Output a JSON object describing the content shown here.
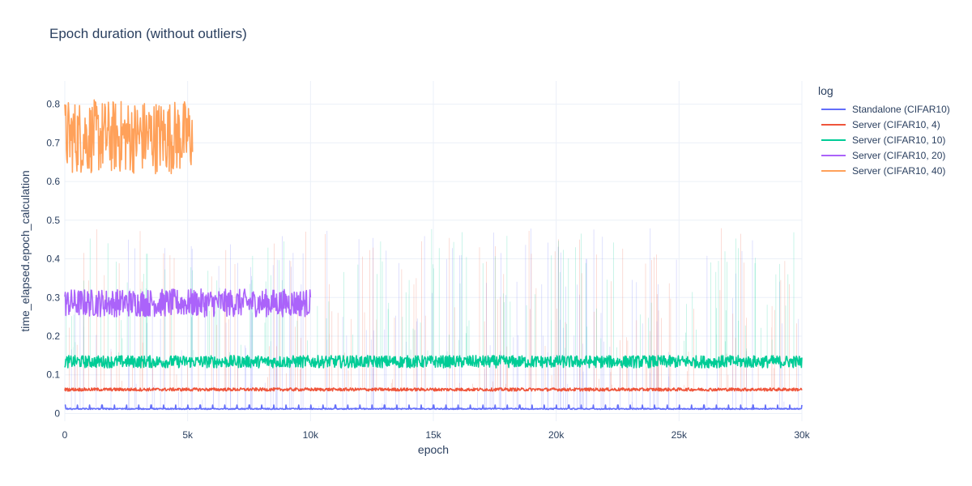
{
  "chart_data": {
    "type": "line",
    "title": "Epoch duration (without outliers)",
    "xlabel": "epoch",
    "ylabel": "time_elapsed.epoch_calculation",
    "xlim": [
      0,
      30000
    ],
    "ylim": [
      -0.02,
      0.86
    ],
    "x_ticks": [
      0,
      5000,
      10000,
      15000,
      20000,
      25000,
      30000
    ],
    "x_tick_labels": [
      "0",
      "5k",
      "10k",
      "15k",
      "20k",
      "25k",
      "30k"
    ],
    "y_ticks": [
      0,
      0.1,
      0.2,
      0.3,
      0.4,
      0.5,
      0.6,
      0.7,
      0.8
    ],
    "y_tick_labels": [
      "0",
      "0.1",
      "0.2",
      "0.3",
      "0.4",
      "0.5",
      "0.6",
      "0.7",
      "0.8"
    ],
    "grid": true,
    "legend_title": "log",
    "legend_position": "top-right",
    "series": [
      {
        "name": "Standalone (CIFAR10)",
        "color": "#636efa",
        "x_range": [
          0,
          30000
        ],
        "base": 0.012,
        "band": [
          0.01,
          0.016
        ],
        "spike_top": 0.022,
        "spike_every": 500
      },
      {
        "name": "Server (CIFAR10, 4)",
        "color": "#EF553B",
        "x_range": [
          0,
          30000
        ],
        "base": 0.062,
        "band": [
          0.058,
          0.066
        ]
      },
      {
        "name": "Server (CIFAR10, 10)",
        "color": "#00cc96",
        "x_range": [
          0,
          30000
        ],
        "base": 0.133,
        "band": [
          0.118,
          0.15
        ]
      },
      {
        "name": "Server (CIFAR10, 20)",
        "color": "#ab63fa",
        "x_range": [
          0,
          10000
        ],
        "base": 0.285,
        "band": [
          0.25,
          0.322
        ]
      },
      {
        "name": "Server (CIFAR10, 40)",
        "color": "#FFA15A",
        "x_range": [
          0,
          5200
        ],
        "base": 0.715,
        "band": [
          0.62,
          0.812
        ]
      }
    ]
  }
}
